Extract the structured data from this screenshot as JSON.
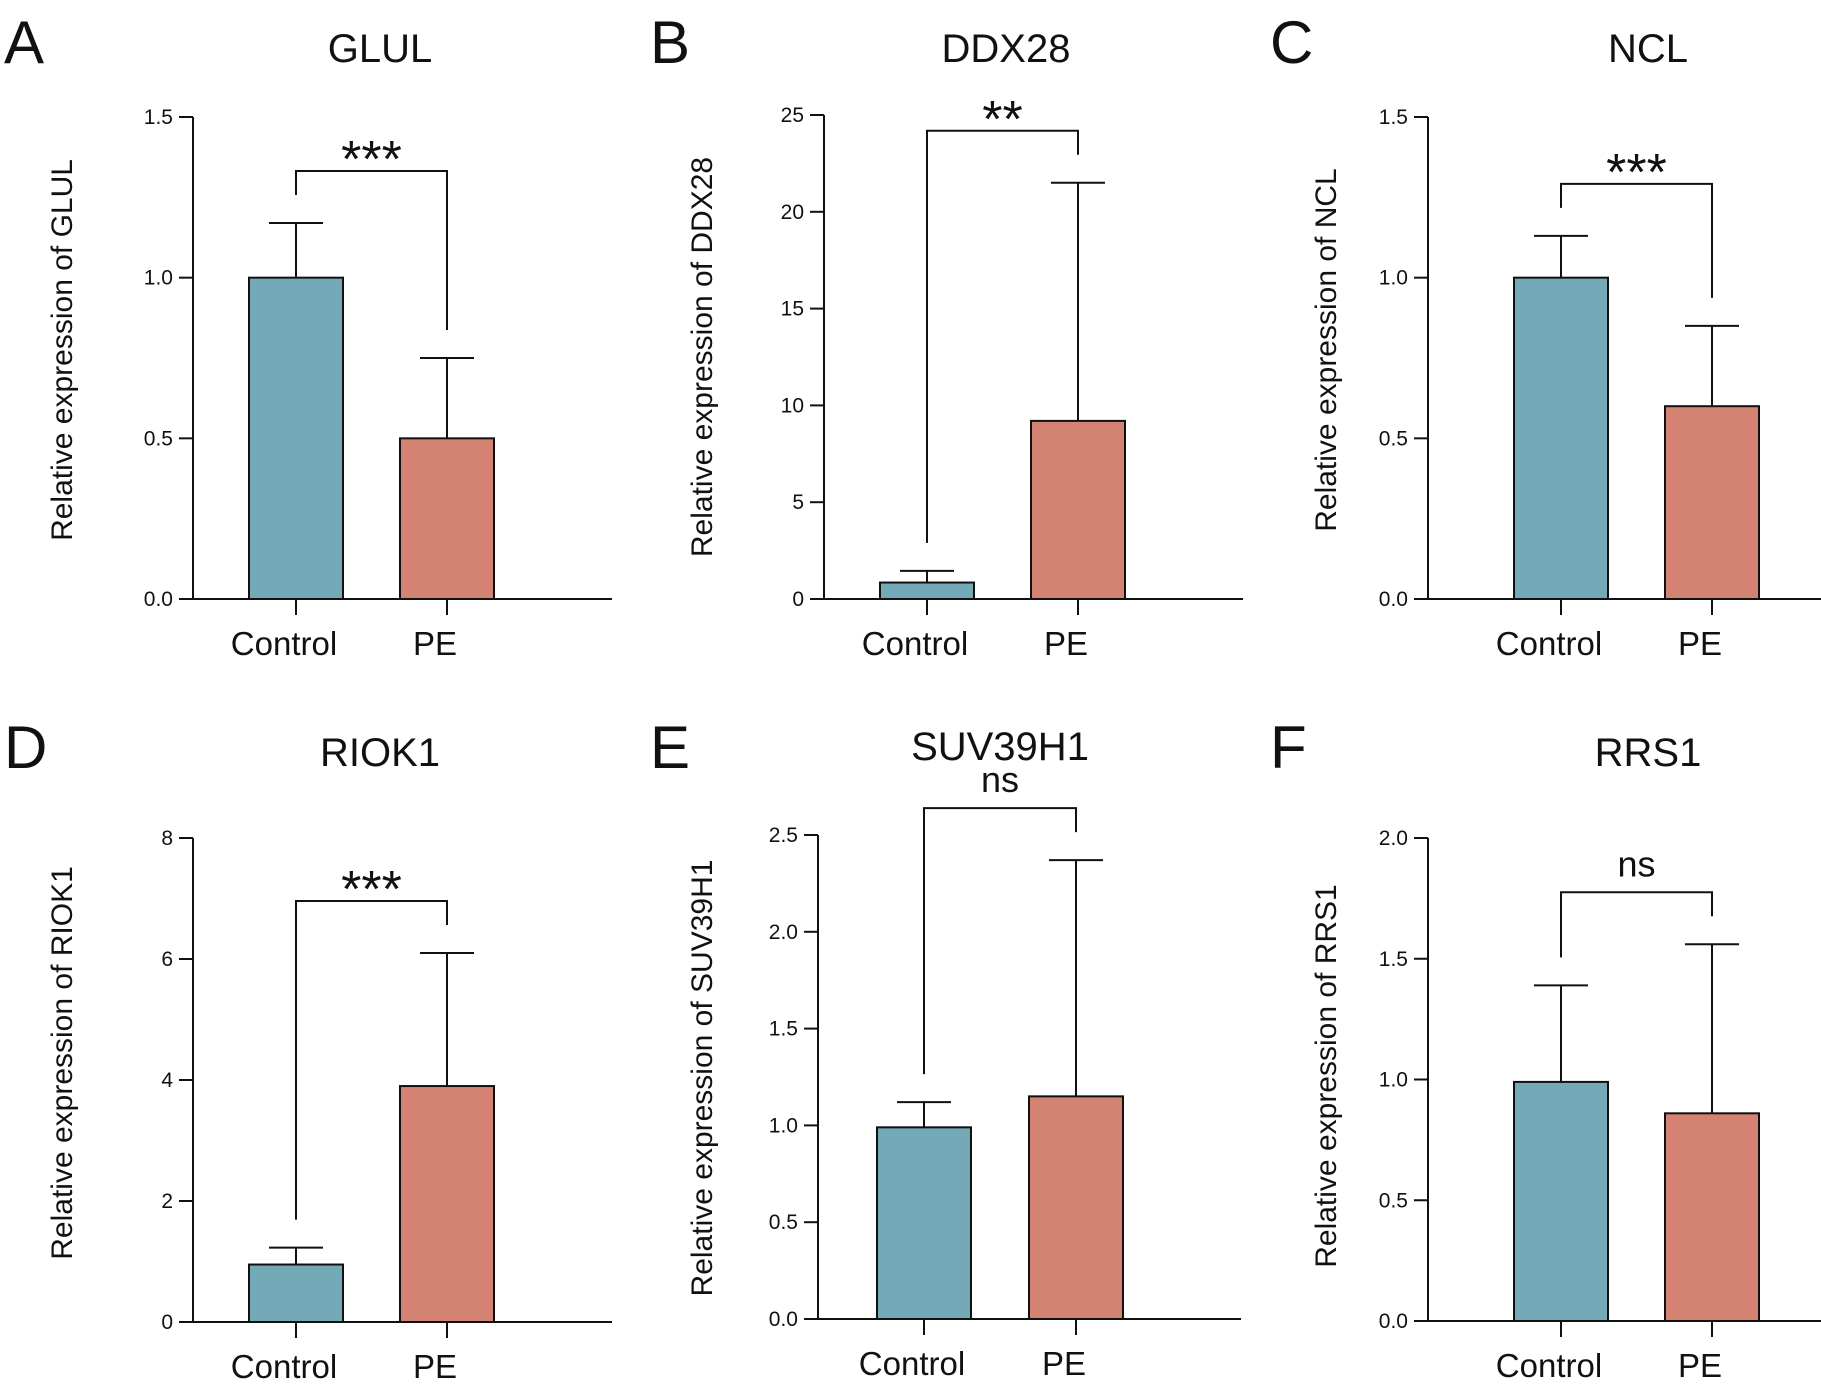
{
  "colors": {
    "control": "#74A9B7",
    "pe": "#D48373",
    "axis": "#111111"
  },
  "chart_data": [
    {
      "panel": "A",
      "type": "bar",
      "title": "GLUL",
      "xlabel": "",
      "ylabel": "Relative expression of GLUL",
      "categories": [
        "Control",
        "PE"
      ],
      "values": [
        1.0,
        0.5
      ],
      "errors": [
        0.17,
        0.25
      ],
      "ylim": [
        0,
        1.5
      ],
      "yticks": [
        "0.0",
        "0.5",
        "1.0",
        "1.5"
      ],
      "significance": "***"
    },
    {
      "panel": "B",
      "type": "bar",
      "title": "DDX28",
      "xlabel": "",
      "ylabel": "Relative expression of DDX28",
      "categories": [
        "Control",
        "PE"
      ],
      "values": [
        0.85,
        9.2
      ],
      "errors": [
        0.6,
        12.3
      ],
      "ylim": [
        0,
        25
      ],
      "yticks": [
        "0",
        "5",
        "10",
        "15",
        "20",
        "25"
      ],
      "significance": "**"
    },
    {
      "panel": "C",
      "type": "bar",
      "title": "NCL",
      "xlabel": "",
      "ylabel": "Relative expression of NCL",
      "categories": [
        "Control",
        "PE"
      ],
      "values": [
        1.0,
        0.6
      ],
      "errors": [
        0.13,
        0.25
      ],
      "ylim": [
        0,
        1.5
      ],
      "yticks": [
        "0.0",
        "0.5",
        "1.0",
        "1.5"
      ],
      "significance": "***"
    },
    {
      "panel": "D",
      "type": "bar",
      "title": "RIOK1",
      "xlabel": "",
      "ylabel": "Relative expression of RIOK1",
      "categories": [
        "Control",
        "PE"
      ],
      "values": [
        0.95,
        3.9
      ],
      "errors": [
        0.28,
        2.2
      ],
      "ylim": [
        0,
        8
      ],
      "yticks": [
        "0",
        "2",
        "4",
        "6",
        "8"
      ],
      "significance": "***"
    },
    {
      "panel": "E",
      "type": "bar",
      "title": "SUV39H1",
      "xlabel": "",
      "ylabel": "Relative expression of SUV39H1",
      "categories": [
        "Control",
        "PE"
      ],
      "values": [
        0.99,
        1.15
      ],
      "errors": [
        0.13,
        1.22
      ],
      "ylim": [
        0,
        2.5
      ],
      "yticks": [
        "0.0",
        "0.5",
        "1.0",
        "1.5",
        "2.0",
        "2.5"
      ],
      "significance": "ns"
    },
    {
      "panel": "F",
      "type": "bar",
      "title": "RRS1",
      "xlabel": "",
      "ylabel": "Relative expression of RRS1",
      "categories": [
        "Control",
        "PE"
      ],
      "values": [
        0.99,
        0.86
      ],
      "errors": [
        0.4,
        0.7
      ],
      "ylim": [
        0,
        2.0
      ],
      "yticks": [
        "0.0",
        "0.5",
        "1.0",
        "1.5",
        "2.0"
      ],
      "significance": "ns"
    }
  ]
}
